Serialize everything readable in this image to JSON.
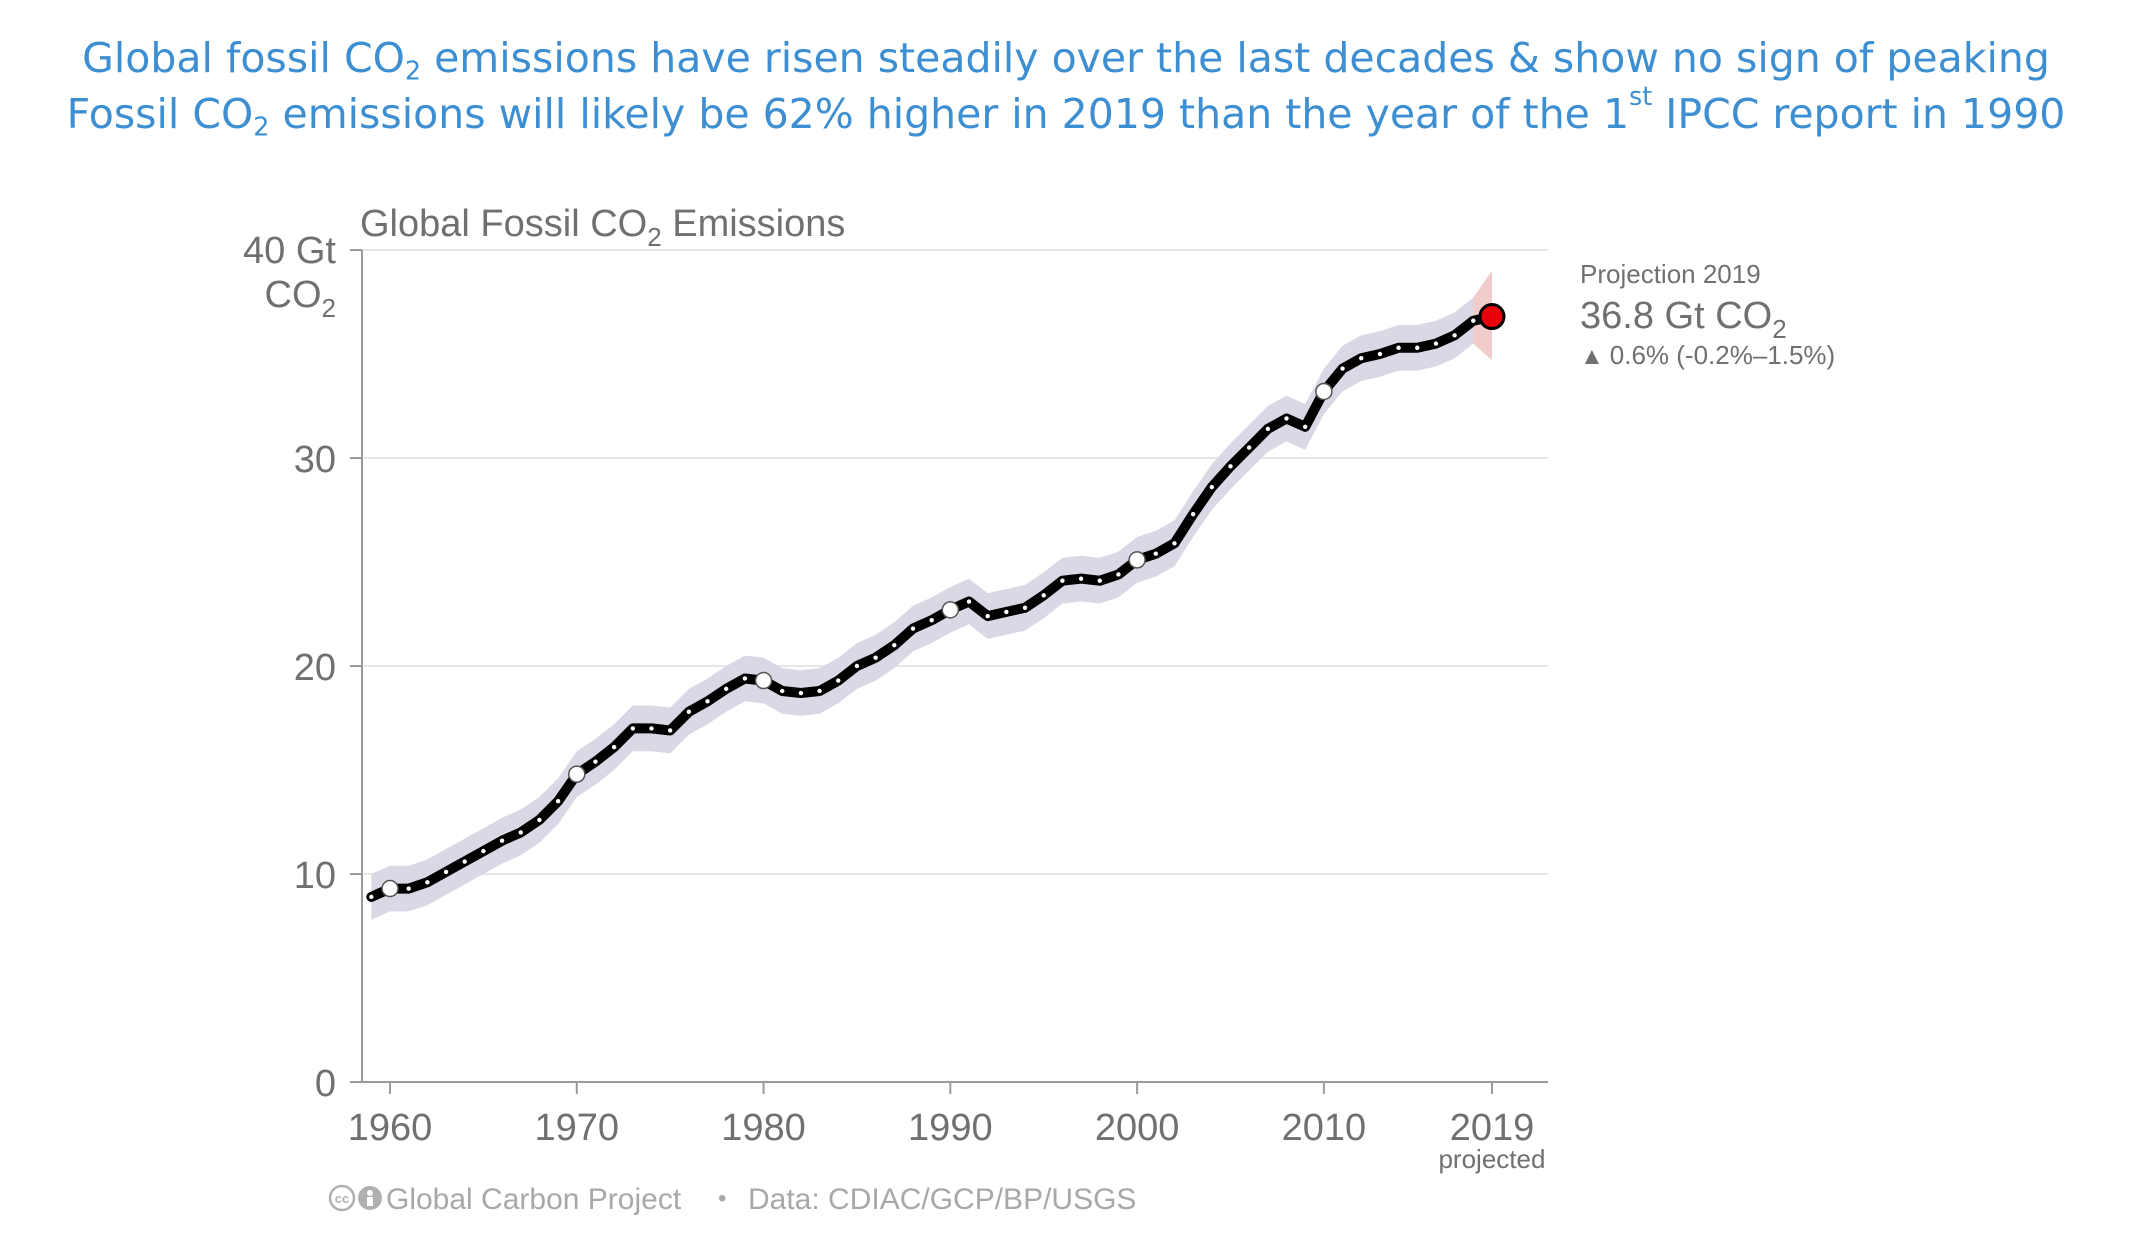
{
  "headline": {
    "line1": {
      "pre": "Global fossil CO",
      "sub": "2",
      "post": " emissions have risen steadily over the last decades & show no sign of peaking"
    },
    "line2": {
      "pre": "Fossil CO",
      "sub": "2",
      "mid": " emissions will likely be 62% higher in 2019 than the year of the 1",
      "sup": "st",
      "post": " IPCC report in 1990"
    }
  },
  "colors": {
    "headline": "#3d8fd1",
    "line": "#000000",
    "uncertainty_band": "#d9d9e6",
    "projection_band": "#f2cccc",
    "projection_point": "#e8000b",
    "axis_text": "#707070",
    "grid": "#e6e6e6"
  },
  "chart_data": {
    "type": "line",
    "title": {
      "pre": "Global Fossil CO",
      "sub": "2",
      "post": " Emissions"
    },
    "ylabel": {
      "line1": "40 Gt",
      "line2_pre": "CO",
      "line2_sub": "2"
    },
    "ylim": [
      0,
      40
    ],
    "xlim": [
      1958.5,
      2022
    ],
    "yticks": [
      0,
      10,
      20,
      30
    ],
    "xticks": [
      {
        "value": 1960,
        "label": "1960"
      },
      {
        "value": 1970,
        "label": "1970"
      },
      {
        "value": 1980,
        "label": "1980"
      },
      {
        "value": 1990,
        "label": "1990"
      },
      {
        "value": 2000,
        "label": "2000"
      },
      {
        "value": 2010,
        "label": "2010"
      },
      {
        "value": 2019,
        "label": "2019"
      }
    ],
    "xtick_sublabel": "projected",
    "grid": "horizontal",
    "series": [
      {
        "x": [
          1959,
          1960,
          1961,
          1962,
          1963,
          1964,
          1965,
          1966,
          1967,
          1968,
          1969,
          1970,
          1971,
          1972,
          1973,
          1974,
          1975,
          1976,
          1977,
          1978,
          1979,
          1980,
          1981,
          1982,
          1983,
          1984,
          1985,
          1986,
          1987,
          1988,
          1989,
          1990,
          1991,
          1992,
          1993,
          1994,
          1995,
          1996,
          1997,
          1998,
          1999,
          2000,
          2001,
          2002,
          2003,
          2004,
          2005,
          2006,
          2007,
          2008,
          2009,
          2010,
          2011,
          2012,
          2013,
          2014,
          2015,
          2016,
          2017,
          2018
        ],
        "y": [
          8.9,
          9.3,
          9.3,
          9.6,
          10.1,
          10.6,
          11.1,
          11.6,
          12.0,
          12.6,
          13.5,
          14.8,
          15.4,
          16.1,
          17.0,
          17.0,
          16.9,
          17.8,
          18.3,
          18.9,
          19.4,
          19.3,
          18.8,
          18.7,
          18.8,
          19.3,
          20.0,
          20.4,
          21.0,
          21.8,
          22.2,
          22.7,
          23.1,
          22.4,
          22.6,
          22.8,
          23.4,
          24.1,
          24.2,
          24.1,
          24.4,
          25.1,
          25.4,
          25.9,
          27.3,
          28.6,
          29.6,
          30.5,
          31.4,
          31.9,
          31.5,
          33.2,
          34.3,
          34.8,
          35.0,
          35.3,
          35.3,
          35.5,
          35.9,
          36.6
        ],
        "uncertainty": 1.1,
        "highlight_years": [
          1960,
          1970,
          1980,
          1990,
          2000,
          2010
        ]
      }
    ],
    "projection": {
      "year": 2019,
      "value": 36.8,
      "low": 34.7,
      "high": 39.0,
      "label_title": "Projection 2019",
      "label_value_pre": "36.8 Gt CO",
      "label_value_sub": "2",
      "change_arrow": "▲",
      "change_text": "0.6% (-0.2%–1.5%)"
    }
  },
  "footer": {
    "attribution": "Global Carbon Project",
    "separator": "•",
    "source": "Data: CDIAC/GCP/BP/USGS"
  }
}
